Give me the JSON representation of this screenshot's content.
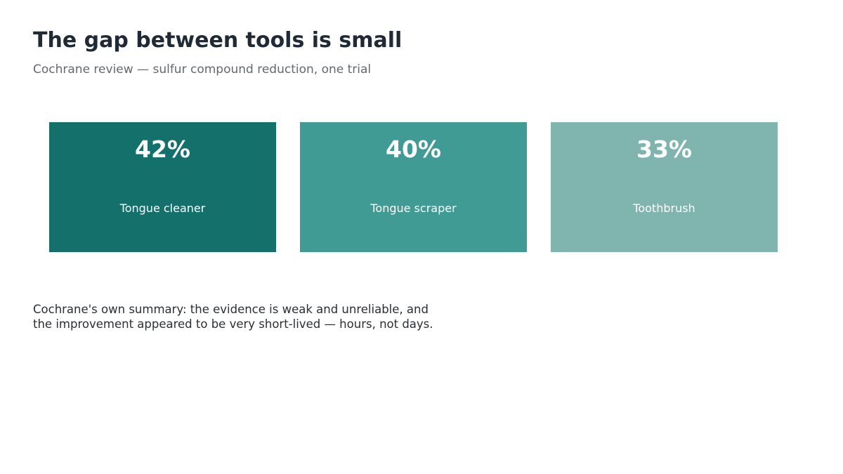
{
  "header": {
    "title": "The gap between tools is small",
    "subtitle": "Cochrane review — sulfur compound reduction, one trial"
  },
  "chart_data": {
    "type": "bar",
    "title": "The gap between tools is small",
    "subtitle": "Cochrane review — sulfur compound reduction, one trial",
    "categories": [
      "Tongue cleaner",
      "Tongue scraper",
      "Toothbrush"
    ],
    "values": [
      42,
      40,
      33
    ],
    "value_labels": [
      "42%",
      "40%",
      "33%"
    ],
    "unit": "%",
    "colors": [
      "#13706b",
      "#3f9b94",
      "#80b4ae"
    ],
    "grid": false,
    "legend": "none"
  },
  "note": {
    "line1": "Cochrane's own summary: the evidence is weak and unreliable, and",
    "line2": "the improvement appeared to be very short-lived — hours, not days."
  }
}
